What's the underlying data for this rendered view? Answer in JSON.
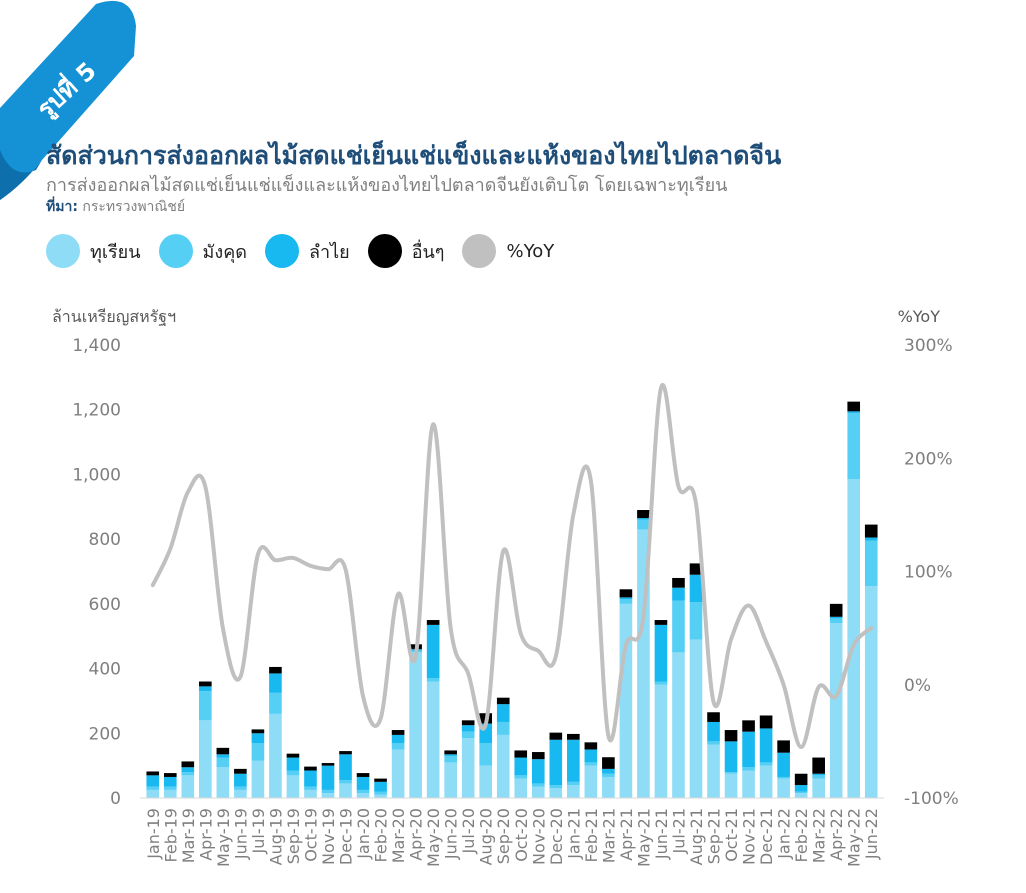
{
  "header": {
    "figure_label": "รูปที่ 5",
    "title": "สัดส่วนการส่งออกผลไม้สดแช่เย็นแช่แข็งและแห้งของไทยไปตลาดจีน",
    "subtitle": "การส่งออกผลไม้สดแช่เย็นแช่แข็งและแห้งของไทยไปตลาดจีนยังเติบโต โดยเฉพาะทุเรียน",
    "source_label": "ที่มา:",
    "source_text": " กระทรวงพาณิชย์"
  },
  "colors": {
    "durian": "#8fdcf7",
    "mangosteen": "#56cff5",
    "longan": "#17b9f0",
    "others": "#000000",
    "yoy": "#c0c0c0",
    "title": "#1f4e79"
  },
  "chart_data": {
    "type": "bar",
    "stacked": true,
    "categories": [
      "Jan-19",
      "Feb-19",
      "Mar-19",
      "Apr-19",
      "May-19",
      "Jun-19",
      "Jul-19",
      "Aug-19",
      "Sep-19",
      "Oct-19",
      "Nov-19",
      "Dec-19",
      "Jan-20",
      "Feb-20",
      "Mar-20",
      "Apr-20",
      "May-20",
      "Jun-20",
      "Jul-20",
      "Aug-20",
      "Sep-20",
      "Oct-20",
      "Nov-20",
      "Dec-20",
      "Jan-21",
      "Feb-21",
      "Mar-21",
      "Apr-21",
      "May-21",
      "Jun-21",
      "Jul-21",
      "Aug-21",
      "Sep-21",
      "Oct-21",
      "Nov-21",
      "Dec-21",
      "Jan-22",
      "Feb-22",
      "Mar-22",
      "Apr-22",
      "May-22",
      "Jun-22"
    ],
    "series": [
      {
        "name": "ทุเรียน",
        "color_key": "durian",
        "values": [
          25,
          25,
          70,
          240,
          95,
          25,
          115,
          260,
          70,
          25,
          15,
          45,
          15,
          10,
          150,
          450,
          360,
          110,
          185,
          100,
          195,
          60,
          35,
          30,
          40,
          100,
          65,
          600,
          830,
          350,
          450,
          490,
          165,
          75,
          85,
          100,
          60,
          15,
          60,
          540,
          985,
          655
        ]
      },
      {
        "name": "มังคุด",
        "color_key": "mangosteen",
        "values": [
          10,
          10,
          10,
          90,
          30,
          10,
          55,
          65,
          15,
          10,
          10,
          10,
          10,
          10,
          20,
          5,
          10,
          20,
          20,
          70,
          40,
          10,
          10,
          10,
          10,
          10,
          10,
          15,
          30,
          10,
          160,
          115,
          10,
          5,
          10,
          10,
          5,
          5,
          10,
          15,
          205,
          140
        ]
      },
      {
        "name": "ลำไย",
        "color_key": "longan",
        "values": [
          35,
          30,
          15,
          15,
          10,
          40,
          30,
          60,
          40,
          50,
          75,
          80,
          40,
          30,
          25,
          5,
          165,
          5,
          20,
          60,
          55,
          55,
          75,
          140,
          130,
          40,
          15,
          5,
          5,
          175,
          40,
          85,
          60,
          95,
          110,
          105,
          75,
          20,
          5,
          5,
          5,
          10
        ]
      },
      {
        "name": "อื่นๆ",
        "color_key": "others",
        "values": [
          12,
          12,
          18,
          15,
          20,
          15,
          12,
          20,
          12,
          12,
          8,
          10,
          12,
          10,
          15,
          15,
          15,
          12,
          15,
          32,
          20,
          22,
          22,
          22,
          18,
          22,
          36,
          25,
          25,
          15,
          30,
          35,
          30,
          35,
          35,
          40,
          38,
          35,
          50,
          40,
          30,
          40
        ]
      }
    ],
    "line": {
      "name": "%YoY",
      "color_key": "yoy",
      "axis": "right",
      "values": [
        88,
        120,
        170,
        175,
        50,
        7,
        115,
        110,
        112,
        105,
        102,
        102,
        -10,
        -30,
        80,
        25,
        230,
        50,
        10,
        -35,
        118,
        45,
        30,
        25,
        150,
        180,
        -45,
        35,
        60,
        262,
        175,
        160,
        -15,
        40,
        70,
        38,
        0,
        -55,
        -2,
        -10,
        35,
        50
      ]
    },
    "y_left": {
      "label": "ล้านเหรียญสหรัฐฯ",
      "min": 0,
      "max": 1400,
      "ticks": [
        0,
        200,
        400,
        600,
        800,
        1000,
        1200,
        1400
      ],
      "tick_labels": [
        "0",
        "200",
        "400",
        "600",
        "800",
        "1,000",
        "1,200",
        "1,400"
      ]
    },
    "y_right": {
      "label": "%YoY",
      "min": -100,
      "max": 300,
      "ticks": [
        -100,
        0,
        100,
        200,
        300
      ],
      "tick_labels": [
        "-100%",
        "0%",
        "100%",
        "200%",
        "300%"
      ]
    },
    "legend_position": "top-left",
    "grid": false
  }
}
